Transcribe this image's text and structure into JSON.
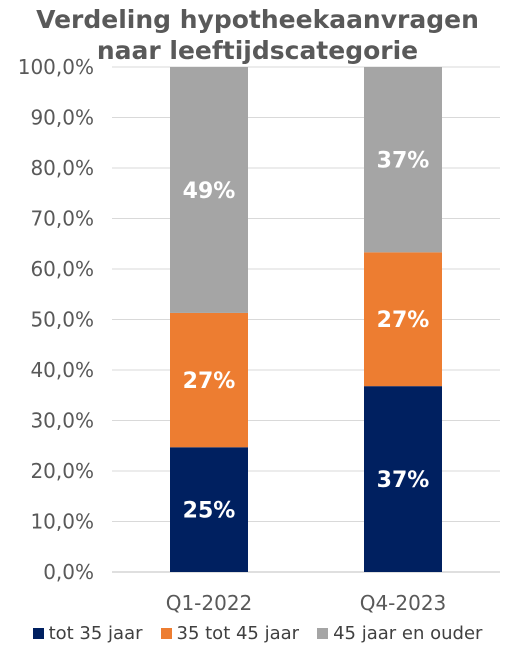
{
  "chart_data": {
    "type": "bar",
    "stacked": true,
    "title": "Verdeling hypotheekaanvragen naar leeftijdscategorie",
    "title_lines": [
      "Verdeling hypotheekaanvragen",
      "naar leeftijdscategorie"
    ],
    "categories": [
      "Q1-2022",
      "Q4-2023"
    ],
    "series": [
      {
        "name": "tot 35 jaar",
        "color": "#002060",
        "values": [
          24.7,
          36.8
        ],
        "labels": [
          "25%",
          "37%"
        ]
      },
      {
        "name": "35 tot 45 jaar",
        "color": "#ED7D31",
        "values": [
          26.6,
          26.5
        ],
        "labels": [
          "27%",
          "27%"
        ]
      },
      {
        "name": "45 jaar en ouder",
        "color": "#A5A5A5",
        "values": [
          48.7,
          36.7
        ],
        "labels": [
          "49%",
          "37%"
        ]
      }
    ],
    "ylim": [
      0,
      100
    ],
    "yticks": [
      "0,0%",
      "10,0%",
      "20,0%",
      "30,0%",
      "40,0%",
      "50,0%",
      "60,0%",
      "70,0%",
      "80,0%",
      "90,0%",
      "100,0%"
    ],
    "grid": true,
    "legend_position": "bottom"
  }
}
